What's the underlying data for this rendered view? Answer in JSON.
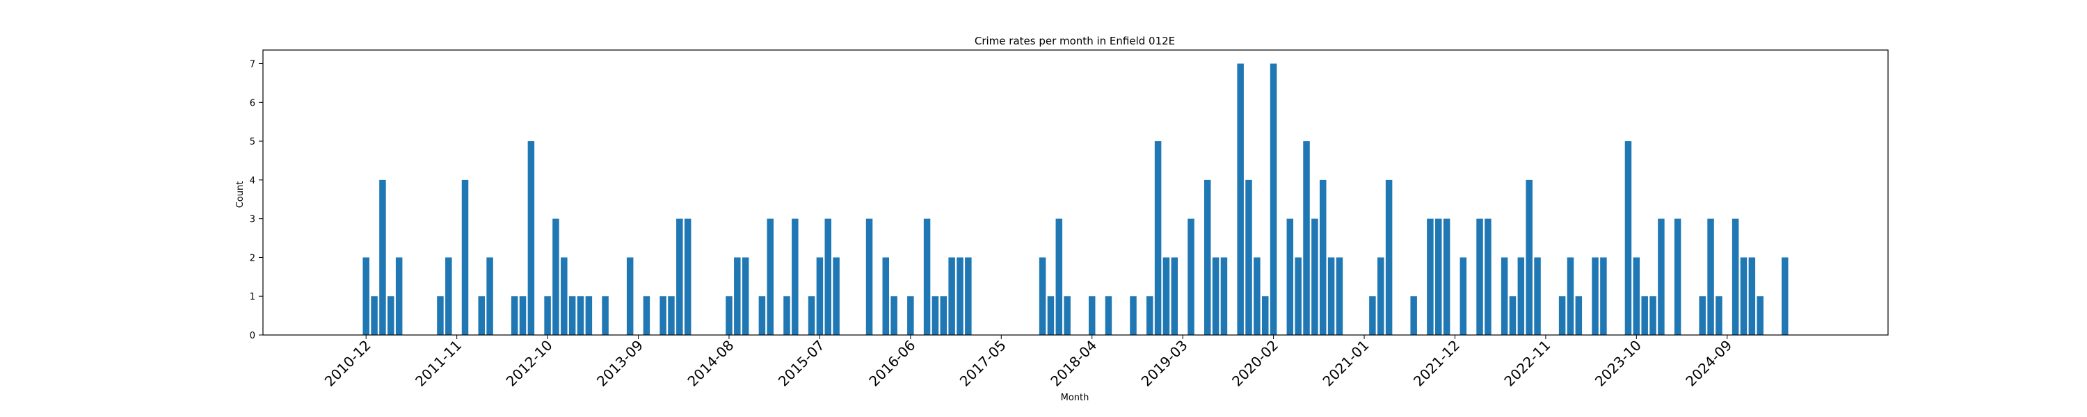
{
  "chart_data": {
    "type": "bar",
    "title": "Crime rates per month in Enfield 012E",
    "xlabel": "Month",
    "ylabel": "Count",
    "ylim": [
      0,
      7.35
    ],
    "yticks": [
      0,
      1,
      2,
      3,
      4,
      5,
      6,
      7
    ],
    "xticks": [
      "2010-12",
      "2011-11",
      "2012-10",
      "2013-09",
      "2014-08",
      "2015-07",
      "2016-06",
      "2017-05",
      "2018-04",
      "2019-03",
      "2020-02",
      "2021-01",
      "2021-12",
      "2022-11",
      "2023-10",
      "2024-09"
    ],
    "grid": false,
    "color": "#1f77b4",
    "categories": [
      "2010-12",
      "2011-01",
      "2011-02",
      "2011-03",
      "2011-04",
      "2011-09",
      "2011-10",
      "2011-12",
      "2012-02",
      "2012-03",
      "2012-06",
      "2012-07",
      "2012-08",
      "2012-10",
      "2012-11",
      "2012-12",
      "2013-01",
      "2013-02",
      "2013-03",
      "2013-05",
      "2013-08",
      "2013-10",
      "2013-12",
      "2014-01",
      "2014-02",
      "2014-03",
      "2014-08",
      "2014-09",
      "2014-10",
      "2014-12",
      "2015-01",
      "2015-03",
      "2015-04",
      "2015-06",
      "2015-07",
      "2015-08",
      "2015-09",
      "2016-01",
      "2016-03",
      "2016-04",
      "2016-06",
      "2016-08",
      "2016-09",
      "2016-10",
      "2016-11",
      "2016-12",
      "2017-01",
      "2017-10",
      "2017-11",
      "2017-12",
      "2018-01",
      "2018-04",
      "2018-06",
      "2018-09",
      "2018-11",
      "2018-12",
      "2019-01",
      "2019-02",
      "2019-04",
      "2019-06",
      "2019-07",
      "2019-08",
      "2019-10",
      "2019-11",
      "2019-12",
      "2020-01",
      "2020-02",
      "2020-04",
      "2020-05",
      "2020-06",
      "2020-07",
      "2020-08",
      "2020-09",
      "2020-10",
      "2021-02",
      "2021-03",
      "2021-04",
      "2021-07",
      "2021-09",
      "2021-10",
      "2021-11",
      "2022-01",
      "2022-03",
      "2022-04",
      "2022-06",
      "2022-07",
      "2022-08",
      "2022-09",
      "2022-10",
      "2023-01",
      "2023-02",
      "2023-03",
      "2023-05",
      "2023-06",
      "2023-09",
      "2023-10",
      "2023-11",
      "2023-12",
      "2024-01",
      "2024-03",
      "2024-06",
      "2024-07",
      "2024-08",
      "2024-10",
      "2024-11",
      "2024-12",
      "2025-01",
      "2025-04"
    ],
    "values": [
      2,
      1,
      4,
      1,
      2,
      1,
      2,
      4,
      1,
      2,
      1,
      1,
      5,
      1,
      3,
      2,
      1,
      1,
      1,
      1,
      2,
      1,
      1,
      1,
      3,
      3,
      1,
      2,
      2,
      1,
      3,
      1,
      3,
      1,
      2,
      3,
      2,
      3,
      2,
      1,
      1,
      3,
      1,
      1,
      2,
      2,
      2,
      2,
      1,
      3,
      1,
      1,
      1,
      1,
      1,
      5,
      2,
      2,
      3,
      4,
      2,
      2,
      7,
      4,
      2,
      1,
      7,
      3,
      2,
      5,
      3,
      4,
      2,
      2,
      1,
      2,
      4,
      1,
      3,
      3,
      3,
      2,
      3,
      3,
      2,
      1,
      2,
      4,
      2,
      1,
      2,
      1,
      2,
      2,
      5,
      2,
      1,
      1,
      3,
      3,
      1,
      3,
      1,
      3,
      2,
      2,
      1,
      2
    ]
  }
}
